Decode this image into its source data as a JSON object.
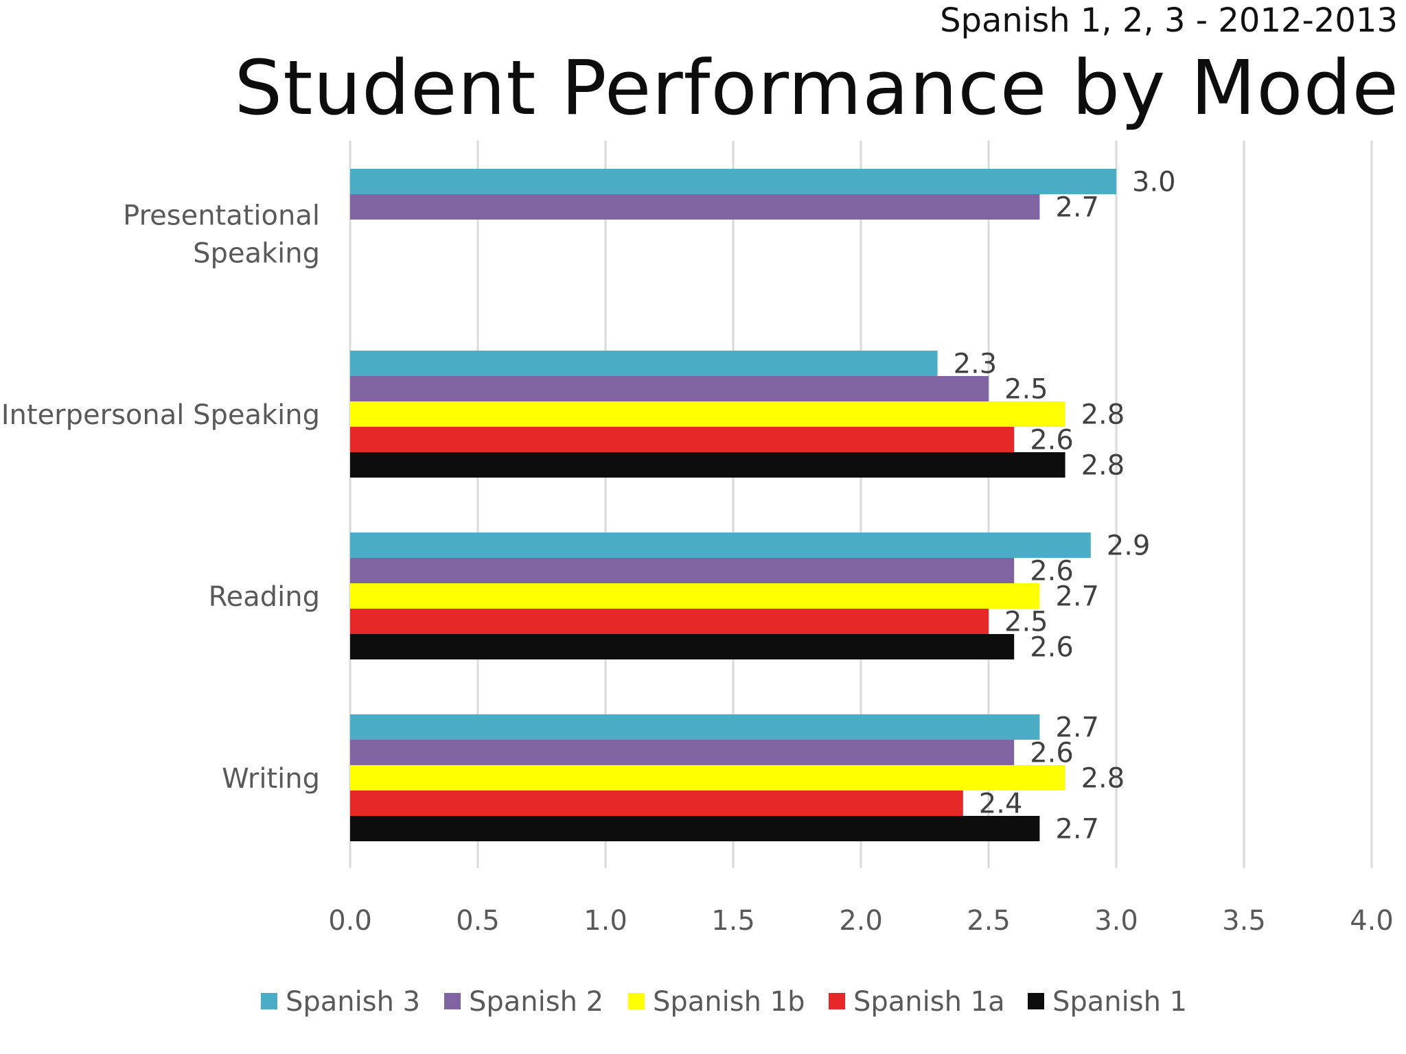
{
  "header": {
    "subtitle": "Spanish 1, 2, 3 - 2012-2013",
    "title": "Student Performance by Mode"
  },
  "chart_data": {
    "type": "bar",
    "orientation": "horizontal",
    "title": "Student Performance by Mode",
    "subtitle": "Spanish 1, 2, 3 - 2012-2013",
    "categories": [
      "Presentational Speaking",
      "Interpersonal Speaking",
      "Reading",
      "Writing"
    ],
    "category_lines": [
      [
        "Presentational",
        "Speaking"
      ],
      [
        "Interpersonal Speaking"
      ],
      [
        "Reading"
      ],
      [
        "Writing"
      ]
    ],
    "series": [
      {
        "name": "Spanish 3",
        "color": "#4bacc6",
        "values": [
          3.0,
          2.3,
          2.9,
          2.7
        ]
      },
      {
        "name": "Spanish 2",
        "color": "#8064a2",
        "values": [
          2.7,
          2.5,
          2.6,
          2.6
        ]
      },
      {
        "name": "Spanish 1b",
        "color": "#ffff00",
        "values": [
          null,
          2.8,
          2.7,
          2.8
        ]
      },
      {
        "name": "Spanish 1a",
        "color": "#e62828",
        "values": [
          null,
          2.6,
          2.5,
          2.4
        ]
      },
      {
        "name": "Spanish 1",
        "color": "#0d0d0d",
        "values": [
          null,
          2.8,
          2.6,
          2.7
        ]
      }
    ],
    "data_labels": [
      [
        "3.0",
        "2.3",
        "2.9",
        "2.7"
      ],
      [
        "2.7",
        "2.5",
        "2.6",
        "2.6"
      ],
      [
        null,
        "2.8",
        "2.7",
        "2.8"
      ],
      [
        null,
        "2.6",
        "2.5",
        "2.4"
      ],
      [
        null,
        "2.8",
        "2.6",
        "2.7"
      ]
    ],
    "x_ticks": [
      "0.0",
      "0.5",
      "1.0",
      "1.5",
      "2.0",
      "2.5",
      "3.0",
      "3.5",
      "4.0"
    ],
    "xlim": [
      0,
      4
    ],
    "xlabel": "",
    "ylabel": "",
    "grid": "vertical",
    "legend_position": "bottom"
  }
}
